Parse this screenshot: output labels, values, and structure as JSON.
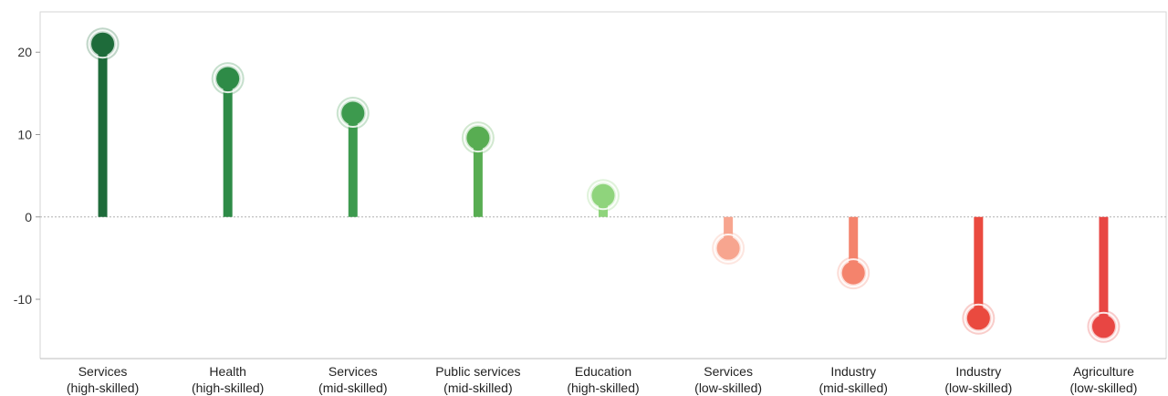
{
  "chart_data": {
    "type": "lollipop",
    "categories": [
      [
        "Services",
        "(high-skilled)"
      ],
      [
        "Health",
        "(high-skilled)"
      ],
      [
        "Services",
        "(mid-skilled)"
      ],
      [
        "Public services",
        "(mid-skilled)"
      ],
      [
        "Education",
        "(high-skilled)"
      ],
      [
        "Services",
        "(low-skilled)"
      ],
      [
        "Industry",
        "(mid-skilled)"
      ],
      [
        "Industry",
        "(low-skilled)"
      ],
      [
        "Agriculture",
        "(low-skilled)"
      ]
    ],
    "values": [
      21,
      16.8,
      12.6,
      9.6,
      2.6,
      -3.8,
      -6.8,
      -12.3,
      -13.3
    ],
    "colors": [
      "#1e6b3a",
      "#2e8b47",
      "#3d9a4e",
      "#58ad52",
      "#8fd47c",
      "#f7a58f",
      "#f4836c",
      "#ea4a3f",
      "#e84643"
    ],
    "y_ticks": [
      20,
      10,
      0,
      -10
    ],
    "ylim": [
      -17.2,
      24.9
    ],
    "grid": false,
    "zero_line": "dotted"
  }
}
